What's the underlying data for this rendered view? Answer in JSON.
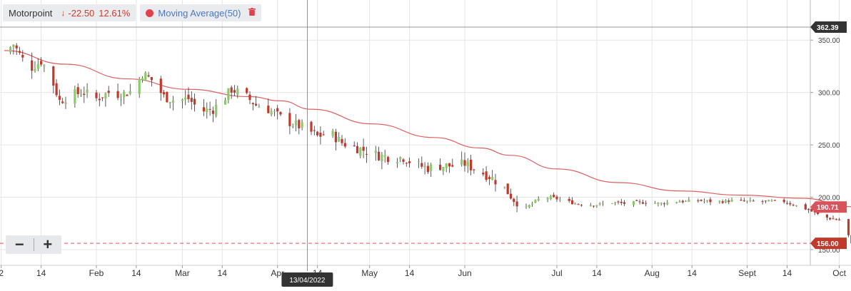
{
  "legend": {
    "symbol": "Motorpoint",
    "change": "-22.50",
    "change_pct": "12.61%",
    "indicator": "Moving Average(50)",
    "indicator_color": "#e0414b",
    "down_color": "#d0392a",
    "delete_icon": "trash-icon",
    "arrow_icon": "down-arrow-icon"
  },
  "zoom": {
    "minus": "−",
    "plus": "+"
  },
  "crosshair": {
    "date_label": "13/04/2022",
    "price_label": "362.39"
  },
  "last_price_label": "156.00",
  "ma_label": "190.71",
  "chart_data": {
    "type": "candlestick",
    "title": "",
    "y_ticks": [
      "350.00",
      "300.00",
      "250.00",
      "200.00",
      "150.00"
    ],
    "ylim": [
      150,
      362.39
    ],
    "x_ticks": [
      {
        "label": "2",
        "day": -1
      },
      {
        "label": "14",
        "day": 12
      },
      {
        "label": "Feb",
        "day": 30
      },
      {
        "label": "14",
        "day": 43
      },
      {
        "label": "Mar",
        "day": 58
      },
      {
        "label": "14",
        "day": 71
      },
      {
        "label": "Apr",
        "day": 89
      },
      {
        "label": "14",
        "day": 102
      },
      {
        "label": "May",
        "day": 119
      },
      {
        "label": "14",
        "day": 132
      },
      {
        "label": "Jun",
        "day": 150
      },
      {
        "label": "Jul",
        "day": 180
      },
      {
        "label": "14",
        "day": 193
      },
      {
        "label": "Aug",
        "day": 211
      },
      {
        "label": "14",
        "day": 224
      },
      {
        "label": "Sept",
        "day": 242
      },
      {
        "label": "14",
        "day": 255
      },
      {
        "label": "Oct",
        "day": 272
      }
    ],
    "series": [
      {
        "name": "Motorpoint",
        "kind": "ohlc",
        "up_color": "#8cc96a",
        "down_color": "#c0392b",
        "anchors": [
          [
            0,
            338
          ],
          [
            3,
            346
          ],
          [
            8,
            322
          ],
          [
            12,
            330
          ],
          [
            15,
            316
          ],
          [
            18,
            292
          ],
          [
            22,
            298
          ],
          [
            26,
            300
          ],
          [
            30,
            294
          ],
          [
            34,
            300
          ],
          [
            38,
            298
          ],
          [
            42,
            302
          ],
          [
            45,
            318
          ],
          [
            48,
            312
          ],
          [
            52,
            296
          ],
          [
            56,
            292
          ],
          [
            60,
            294
          ],
          [
            64,
            282
          ],
          [
            68,
            284
          ],
          [
            71,
            292
          ],
          [
            74,
            303
          ],
          [
            78,
            298
          ],
          [
            82,
            288
          ],
          [
            86,
            284
          ],
          [
            90,
            276
          ],
          [
            94,
            270
          ],
          [
            98,
            266
          ],
          [
            102,
            258
          ],
          [
            106,
            262
          ],
          [
            110,
            252
          ],
          [
            114,
            248
          ],
          [
            118,
            244
          ],
          [
            122,
            240
          ],
          [
            126,
            238
          ],
          [
            130,
            238
          ],
          [
            134,
            231
          ],
          [
            138,
            228
          ],
          [
            142,
            230
          ],
          [
            146,
            230
          ],
          [
            150,
            232
          ],
          [
            154,
            226
          ],
          [
            158,
            220
          ],
          [
            162,
            212
          ],
          [
            166,
            198
          ],
          [
            170,
            190
          ],
          [
            174,
            198
          ],
          [
            178,
            200
          ],
          [
            182,
            197
          ],
          [
            186,
            194
          ],
          [
            190,
            193
          ],
          [
            194,
            193
          ],
          [
            198,
            195
          ],
          [
            202,
            194
          ],
          [
            206,
            195
          ],
          [
            210,
            195
          ],
          [
            214,
            194
          ],
          [
            218,
            196
          ],
          [
            222,
            196
          ],
          [
            226,
            197
          ],
          [
            230,
            196
          ],
          [
            234,
            196
          ],
          [
            238,
            197
          ],
          [
            242,
            196
          ],
          [
            246,
            196
          ],
          [
            250,
            196
          ],
          [
            254,
            196
          ],
          [
            258,
            192
          ],
          [
            262,
            188
          ],
          [
            266,
            182
          ],
          [
            270,
            179
          ],
          [
            273,
            178
          ],
          [
            276,
            156
          ]
        ]
      },
      {
        "name": "Moving Average(50)",
        "kind": "line",
        "color": "#e06060",
        "points": [
          [
            0,
            340
          ],
          [
            20,
            327
          ],
          [
            40,
            313
          ],
          [
            60,
            303
          ],
          [
            80,
            296
          ],
          [
            90,
            292
          ],
          [
            100,
            284
          ],
          [
            120,
            270
          ],
          [
            140,
            257
          ],
          [
            155,
            247
          ],
          [
            165,
            240
          ],
          [
            180,
            227
          ],
          [
            200,
            214
          ],
          [
            220,
            206
          ],
          [
            240,
            202
          ],
          [
            260,
            199
          ],
          [
            276,
            191
          ]
        ]
      }
    ],
    "last_price": 156.0,
    "ma_last": 190.71,
    "crosshair_price": 362.39,
    "crosshair_date": "13/04/2022",
    "grid": true,
    "y_axis_side": "right"
  }
}
